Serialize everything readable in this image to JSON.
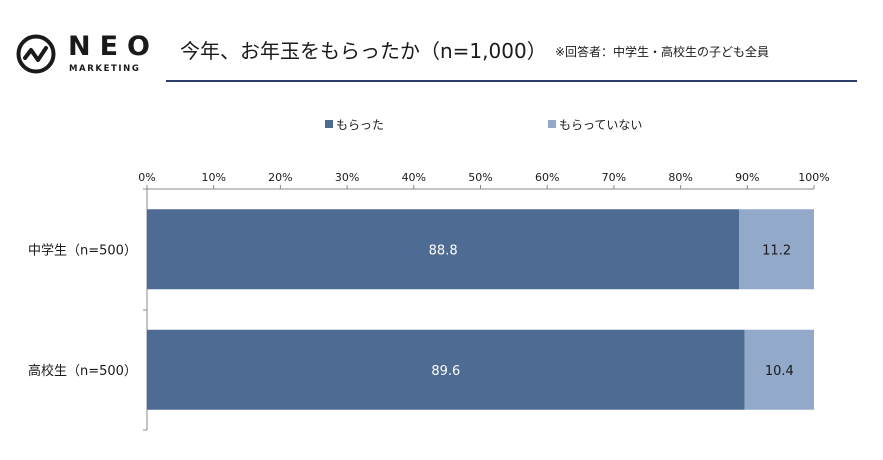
{
  "brand": {
    "name": "NEO",
    "sub": "MARKETING"
  },
  "header": {
    "title": "今年、お年玉をもらったか（n=1,000）",
    "note": "※回答者：中学生・高校生の子ども全員"
  },
  "chart_data": {
    "type": "bar",
    "orientation": "horizontal",
    "stacked": true,
    "percent": true,
    "categories": [
      "中学生（n=500）",
      "高校生（n=500）"
    ],
    "series": [
      {
        "name": "もらった",
        "values": [
          88.8,
          89.6
        ],
        "value_labels": [
          "88.8",
          "89.6"
        ],
        "color": "#4e6b94"
      },
      {
        "name": "もらっていない",
        "values": [
          11.2,
          10.4
        ],
        "value_labels": [
          "11.2",
          "10.4"
        ],
        "color": "#93a9c9"
      }
    ],
    "x_ticks": [
      "0%",
      "10%",
      "20%",
      "30%",
      "40%",
      "50%",
      "60%",
      "70%",
      "80%",
      "90%",
      "100%"
    ],
    "xlim": [
      0,
      100
    ],
    "grid": false,
    "legend_position": "top"
  }
}
